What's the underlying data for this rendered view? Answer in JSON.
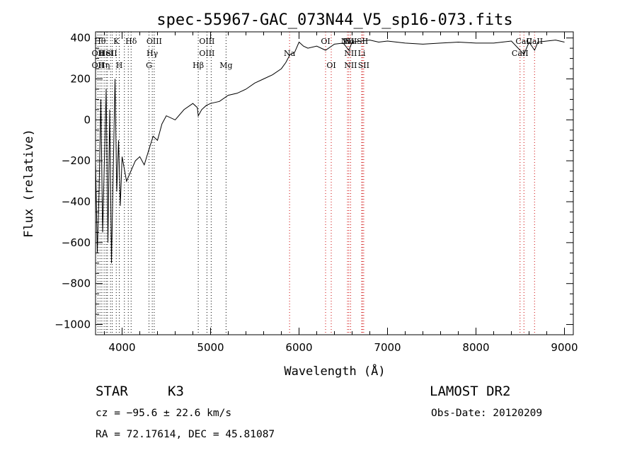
{
  "chart_data": {
    "type": "line",
    "title": "spec-55967-GAC_073N44_V5_sp16-073.fits",
    "xlabel": "Wavelength (Å)",
    "ylabel": "Flux (relative)",
    "xlim": [
      3700,
      9100
    ],
    "ylim": [
      -1050,
      430
    ],
    "x_ticks": [
      4000,
      5000,
      6000,
      7000,
      8000,
      9000
    ],
    "x_tick_labels": [
      "4000",
      "5000",
      "6000",
      "7000",
      "8000",
      "9000"
    ],
    "y_ticks": [
      400,
      200,
      0,
      -200,
      -400,
      -600,
      -800,
      -1000
    ],
    "y_tick_labels": [
      "400",
      "200",
      "0",
      "−200",
      "−400",
      "−600",
      "−800",
      "−1000"
    ],
    "series": [
      {
        "name": "flux",
        "x": [
          3700,
          3720,
          3740,
          3760,
          3780,
          3800,
          3820,
          3840,
          3860,
          3880,
          3900,
          3920,
          3940,
          3960,
          3980,
          4000,
          4050,
          4100,
          4150,
          4200,
          4250,
          4300,
          4350,
          4400,
          4450,
          4500,
          4600,
          4700,
          4800,
          4850,
          4861,
          4900,
          4950,
          5000,
          5100,
          5200,
          5300,
          5400,
          5500,
          5600,
          5700,
          5800,
          5850,
          5900,
          5950,
          6000,
          6050,
          6100,
          6200,
          6300,
          6400,
          6500,
          6563,
          6600,
          6700,
          6800,
          6900,
          7000,
          7200,
          7400,
          7600,
          7800,
          8000,
          8200,
          8400,
          8498,
          8542,
          8600,
          8662,
          8700,
          8800,
          8900,
          9000
        ],
        "values": [
          -200,
          -650,
          -350,
          100,
          -550,
          -200,
          150,
          -600,
          50,
          -700,
          -250,
          200,
          -350,
          -100,
          -420,
          -180,
          -300,
          -250,
          -200,
          -180,
          -220,
          -150,
          -80,
          -100,
          -20,
          20,
          0,
          50,
          80,
          60,
          20,
          50,
          70,
          80,
          90,
          120,
          130,
          150,
          180,
          200,
          220,
          250,
          280,
          320,
          330,
          380,
          360,
          350,
          360,
          340,
          370,
          375,
          340,
          380,
          385,
          390,
          380,
          385,
          375,
          370,
          375,
          380,
          375,
          375,
          385,
          340,
          320,
          380,
          340,
          380,
          385,
          390,
          380
        ]
      }
    ],
    "line_labels": [
      {
        "wl": 3750,
        "row": 1,
        "text": "Hθ"
      },
      {
        "wl": 3727,
        "row": 2,
        "text": "OII"
      },
      {
        "wl": 3727,
        "row": 3,
        "text": "OII"
      },
      {
        "wl": 3771,
        "row": 2,
        "text": "H"
      },
      {
        "wl": 3797,
        "row": 3,
        "text": "Hη"
      },
      {
        "wl": 3820,
        "row": 2,
        "text": "HeI"
      },
      {
        "wl": 3934,
        "row": 1,
        "text": "K"
      },
      {
        "wl": 3880,
        "row": 2,
        "text": "SII"
      },
      {
        "wl": 3968,
        "row": 3,
        "text": "H"
      },
      {
        "wl": 4102,
        "row": 1,
        "text": "Hδ"
      },
      {
        "wl": 4363,
        "row": 1,
        "text": "OIII"
      },
      {
        "wl": 4341,
        "row": 2,
        "text": "Hγ"
      },
      {
        "wl": 4304,
        "row": 3,
        "text": "G"
      },
      {
        "wl": 4959,
        "row": 1,
        "text": "OIII"
      },
      {
        "wl": 4959,
        "row": 2,
        "text": "OIII"
      },
      {
        "wl": 4861,
        "row": 3,
        "text": "Hβ"
      },
      {
        "wl": 5175,
        "row": 3,
        "text": "Mg"
      },
      {
        "wl": 5893,
        "row": 2,
        "text": "Na"
      },
      {
        "wl": 6300,
        "row": 1,
        "text": "OI"
      },
      {
        "wl": 6548,
        "row": 1,
        "text": "NII"
      },
      {
        "wl": 6563,
        "row": 1,
        "text": "Hα"
      },
      {
        "wl": 6583,
        "row": 1,
        "text": "NII"
      },
      {
        "wl": 6717,
        "row": 1,
        "text": "SII"
      },
      {
        "wl": 6583,
        "row": 2,
        "text": "NII"
      },
      {
        "wl": 6708,
        "row": 2,
        "text": "Li"
      },
      {
        "wl": 6364,
        "row": 3,
        "text": "OI"
      },
      {
        "wl": 6583,
        "row": 3,
        "text": "NII"
      },
      {
        "wl": 6731,
        "row": 3,
        "text": "SII"
      },
      {
        "wl": 8498,
        "row": 2,
        "text": "CaII"
      },
      {
        "wl": 8542,
        "row": 1,
        "text": "CaII"
      },
      {
        "wl": 8662,
        "row": 1,
        "text": "CaII"
      }
    ],
    "line_marks": [
      {
        "wl": 3727,
        "color": "black"
      },
      {
        "wl": 3750,
        "color": "black"
      },
      {
        "wl": 3771,
        "color": "black"
      },
      {
        "wl": 3797,
        "color": "black"
      },
      {
        "wl": 3820,
        "color": "black"
      },
      {
        "wl": 3835,
        "color": "black"
      },
      {
        "wl": 3869,
        "color": "black"
      },
      {
        "wl": 3889,
        "color": "black"
      },
      {
        "wl": 3934,
        "color": "black"
      },
      {
        "wl": 3968,
        "color": "black"
      },
      {
        "wl": 4026,
        "color": "black"
      },
      {
        "wl": 4070,
        "color": "black"
      },
      {
        "wl": 4102,
        "color": "black"
      },
      {
        "wl": 4304,
        "color": "black"
      },
      {
        "wl": 4341,
        "color": "black"
      },
      {
        "wl": 4363,
        "color": "black"
      },
      {
        "wl": 4861,
        "color": "black"
      },
      {
        "wl": 4959,
        "color": "black"
      },
      {
        "wl": 5007,
        "color": "black"
      },
      {
        "wl": 5175,
        "color": "black"
      },
      {
        "wl": 5893,
        "color": "red"
      },
      {
        "wl": 6300,
        "color": "red"
      },
      {
        "wl": 6364,
        "color": "red"
      },
      {
        "wl": 6548,
        "color": "red"
      },
      {
        "wl": 6563,
        "color": "red"
      },
      {
        "wl": 6583,
        "color": "red"
      },
      {
        "wl": 6708,
        "color": "red"
      },
      {
        "wl": 6717,
        "color": "red"
      },
      {
        "wl": 6731,
        "color": "red"
      },
      {
        "wl": 8498,
        "color": "red"
      },
      {
        "wl": 8542,
        "color": "red"
      },
      {
        "wl": 8662,
        "color": "red"
      }
    ]
  },
  "info": {
    "object_class": "STAR",
    "subclass": "K3",
    "survey": "LAMOST DR2",
    "cz": "cz = −95.6 ± 22.6 km/s",
    "obs_date": "Obs-Date: 20120209",
    "coords": "RA =  72.17614, DEC =  45.81087"
  },
  "colors": {
    "line_mark_black": "#000000",
    "line_mark_red": "#cc0000",
    "flux": "#000000"
  }
}
